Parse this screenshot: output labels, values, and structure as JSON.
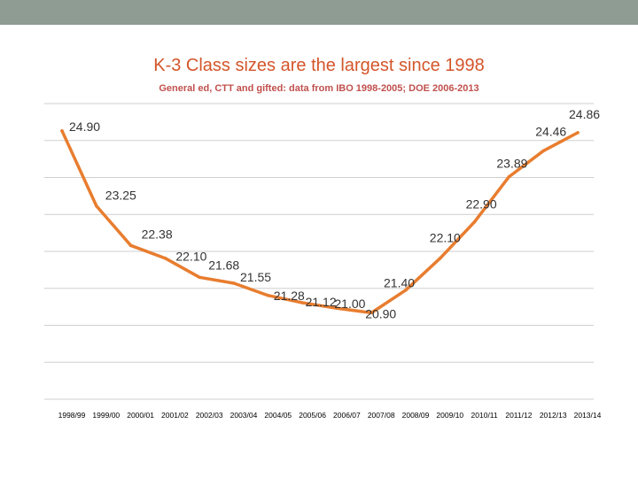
{
  "header": {
    "bar_color": "#8e9c93"
  },
  "chart_data": {
    "type": "line",
    "title": "K-3 Class sizes are the largest since 1998",
    "subtitle": "General ed, CTT and gifted: data from IBO 1998-2005; DOE 2006-2013",
    "xlabel": "",
    "ylabel": "",
    "categories": [
      "1998/99",
      "1999/00",
      "2000/01",
      "2001/02",
      "2002/03",
      "2003/04",
      "2004/05",
      "2005/06",
      "2006/07",
      "2007/08",
      "2008/09",
      "2009/10",
      "2010/11",
      "2011/12",
      "2012/13",
      "2013/14"
    ],
    "value_labels": [
      "24.90",
      "23.25",
      "22.38",
      "22.10",
      "21.68",
      "21.55",
      "21.28",
      "21.12",
      "21.00",
      "20.90",
      "21.40",
      "22.10",
      "22.90",
      "23.89",
      "24.46",
      "24.86"
    ],
    "series": [
      {
        "values": [
          24.9,
          23.25,
          22.38,
          22.1,
          21.68,
          21.55,
          21.28,
          21.12,
          21.0,
          20.9,
          21.4,
          22.1,
          22.9,
          23.89,
          24.46,
          24.86
        ]
      }
    ],
    "ylim": [
      19.0,
      25.5
    ],
    "grid": true,
    "legend": "none",
    "line_color": "#e87d2f",
    "title_color": "#d4552a",
    "subtitle_color": "#c0504d"
  }
}
